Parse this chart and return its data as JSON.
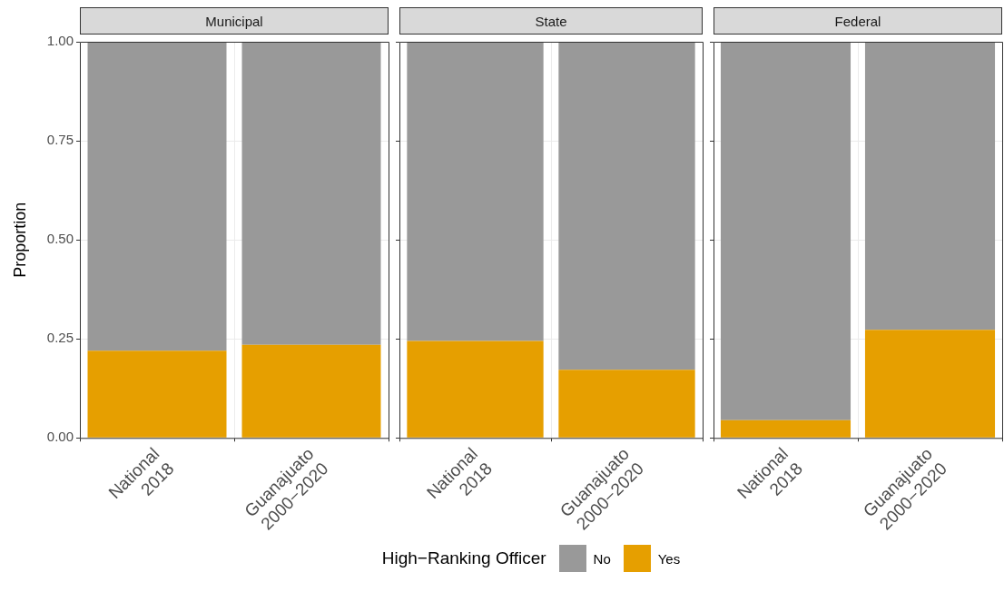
{
  "chart_data": [
    {
      "type": "bar",
      "title": "Municipal",
      "ylabel": "Proportion",
      "categories": [
        "National\n2018",
        "Guanajuato\n2000−2020"
      ],
      "stacked": true,
      "grid": true,
      "ylim": [
        0,
        1
      ],
      "yticks": [
        {
          "value": 0,
          "label": "0.00"
        },
        {
          "value": 0.25,
          "label": "0.25"
        },
        {
          "value": 0.5,
          "label": "0.50"
        },
        {
          "value": 0.75,
          "label": "0.75"
        },
        {
          "value": 1,
          "label": "1.00"
        }
      ],
      "series": [
        {
          "name": "Yes",
          "color": "#e69f00",
          "values": [
            0.22,
            0.235
          ]
        },
        {
          "name": "No",
          "color": "#999999",
          "values": [
            0.78,
            0.765
          ]
        }
      ],
      "legend": "bottom",
      "legend_title": "High−Ranking Officer"
    },
    {
      "type": "bar",
      "title": "State",
      "categories": [
        "National\n2018",
        "Guanajuato\n2000−2020"
      ],
      "stacked": true,
      "grid": true,
      "tick_labels": "x",
      "ylim": [
        0,
        1
      ],
      "yticks": [
        0,
        0.25,
        0.5,
        0.75,
        1
      ],
      "series": [
        {
          "color": "#e69f00",
          "values": [
            0.245,
            0.172
          ]
        },
        {
          "color": "#999999",
          "values": [
            0.755,
            0.828
          ]
        }
      ]
    },
    {
      "type": "bar",
      "title": "Federal",
      "categories": [
        "National\n2018",
        "Guanajuato\n2000−2020"
      ],
      "stacked": true,
      "grid": true,
      "tick_labels": "x",
      "ylim": [
        0,
        1
      ],
      "yticks": [
        0,
        0.25,
        0.5,
        0.75,
        1
      ],
      "series": [
        {
          "color": "#e69f00",
          "values": [
            0.045,
            0.273
          ]
        },
        {
          "color": "#999999",
          "values": [
            0.955,
            0.727
          ]
        }
      ]
    }
  ]
}
